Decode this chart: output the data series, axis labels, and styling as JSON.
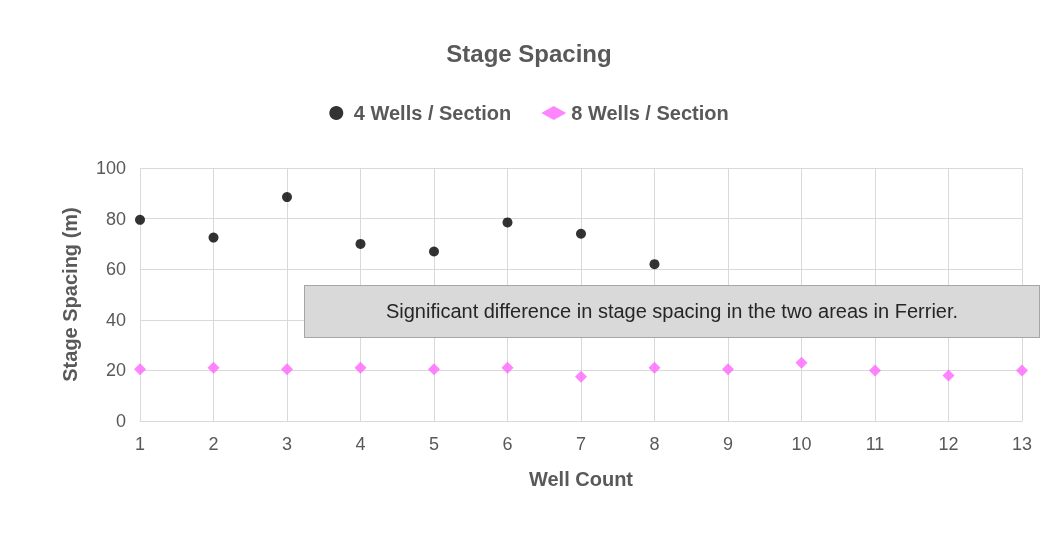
{
  "chart_data": {
    "type": "scatter",
    "title": "Stage Spacing",
    "xlabel": "Well Count",
    "ylabel": "Stage Spacing (m)",
    "x": [
      1,
      2,
      3,
      4,
      5,
      6,
      7,
      8,
      9,
      10,
      11,
      12,
      13
    ],
    "series": [
      {
        "name": "4 Wells / Section",
        "color": "#000000",
        "marker": "circle",
        "values": [
          79.5,
          72.5,
          88.5,
          70,
          67,
          78.5,
          74,
          62,
          null,
          null,
          null,
          null,
          null
        ]
      },
      {
        "name": "8 Wells / Section",
        "color": "#ff66ff",
        "marker": "diamond",
        "values": [
          20.5,
          21,
          20.5,
          21,
          20.5,
          21,
          17.5,
          21,
          20.5,
          23,
          20,
          18,
          20
        ]
      }
    ],
    "xlim": [
      1,
      13
    ],
    "xticks": [
      1,
      2,
      3,
      4,
      5,
      6,
      7,
      8,
      9,
      10,
      11,
      12,
      13
    ],
    "ylim": [
      0,
      100
    ],
    "yticks": [
      0,
      20,
      40,
      60,
      80,
      100
    ],
    "grid": true,
    "legend": "top",
    "annotations": [
      "Significant difference in stage spacing in the two areas in Ferrier."
    ]
  }
}
